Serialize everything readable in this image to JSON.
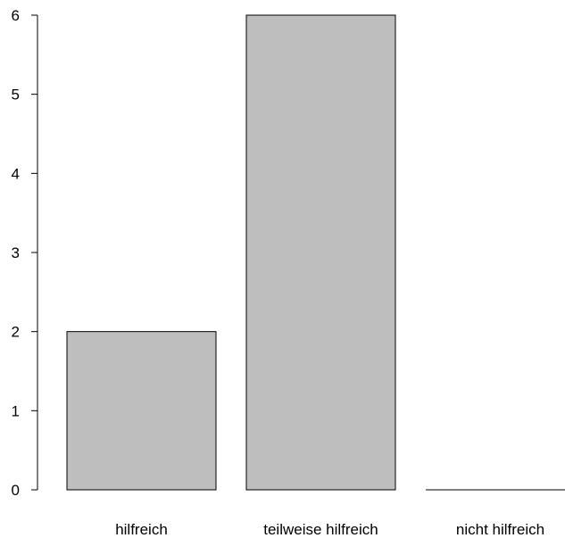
{
  "chart_data": {
    "type": "bar",
    "title": "",
    "xlabel": "",
    "ylabel": "",
    "categories": [
      "hilfreich",
      "teilweise hilfreich",
      "nicht hilfreich"
    ],
    "values": [
      2,
      6,
      0
    ],
    "ylim": [
      0,
      6
    ],
    "yticks": [
      0,
      1,
      2,
      3,
      4,
      5,
      6
    ],
    "ytick_labels": [
      "0",
      "1",
      "2",
      "3",
      "4",
      "5",
      "6"
    ],
    "grid": false,
    "legend": "none",
    "bar_color": "#bebebe",
    "bar_edge_color": "#000000"
  }
}
